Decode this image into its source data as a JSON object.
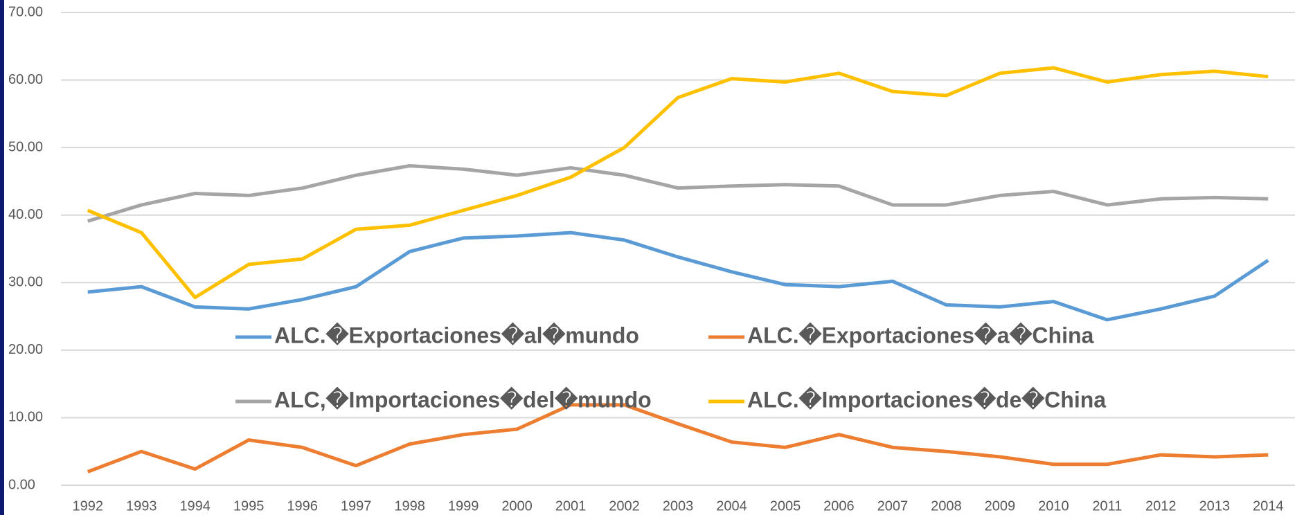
{
  "chart_data": {
    "type": "line",
    "categories": [
      "1992",
      "1993",
      "1994",
      "1995",
      "1996",
      "1997",
      "1998",
      "1999",
      "2000",
      "2001",
      "2002",
      "2003",
      "2004",
      "2005",
      "2006",
      "2007",
      "2008",
      "2009",
      "2010",
      "2011",
      "2012",
      "2013",
      "2014"
    ],
    "series": [
      {
        "name": "ALC.�Exportaciones�al�mundo",
        "color": "#5b9bd5",
        "values": [
          28.6,
          29.4,
          26.4,
          26.1,
          27.5,
          29.4,
          34.6,
          36.6,
          36.9,
          37.4,
          36.3,
          33.8,
          31.6,
          29.7,
          29.4,
          30.2,
          26.7,
          26.4,
          27.2,
          24.5,
          26.1,
          28.0,
          33.3
        ]
      },
      {
        "name": "ALC.�Exportaciones�a�China",
        "color": "#ed7d31",
        "values": [
          2.0,
          5.0,
          2.4,
          6.7,
          5.6,
          2.9,
          6.1,
          7.5,
          8.3,
          11.9,
          11.9,
          9.1,
          6.4,
          5.6,
          7.5,
          5.6,
          5.0,
          4.2,
          3.1,
          3.1,
          4.5,
          4.2,
          4.5
        ]
      },
      {
        "name": "ALC,�Importaciones�del�mundo",
        "color": "#a5a5a5",
        "values": [
          39.1,
          41.5,
          43.2,
          42.9,
          44.0,
          45.9,
          47.3,
          46.8,
          45.9,
          47.0,
          45.9,
          44.0,
          44.3,
          44.5,
          44.3,
          41.5,
          41.5,
          42.9,
          43.5,
          41.5,
          42.4,
          42.6,
          42.4
        ]
      },
      {
        "name": "ALC.�Importaciones�de�China",
        "color": "#ffc000",
        "values": [
          40.7,
          37.4,
          27.8,
          32.7,
          33.5,
          37.9,
          38.5,
          40.7,
          42.9,
          45.6,
          50.0,
          57.4,
          60.2,
          59.7,
          61.0,
          58.3,
          57.7,
          61.0,
          61.8,
          59.7,
          60.8,
          61.3,
          60.5
        ]
      }
    ],
    "ylim": [
      0,
      70
    ],
    "yticks": [
      {
        "value": 0,
        "label": "0.00"
      },
      {
        "value": 10,
        "label": "10.00"
      },
      {
        "value": 20,
        "label": "20.00"
      },
      {
        "value": 30,
        "label": "30.00"
      },
      {
        "value": 40,
        "label": "40.00"
      },
      {
        "value": 50,
        "label": "50.00"
      },
      {
        "value": 60,
        "label": "60.00"
      },
      {
        "value": 70,
        "label": "70.00"
      }
    ],
    "grid": true
  }
}
